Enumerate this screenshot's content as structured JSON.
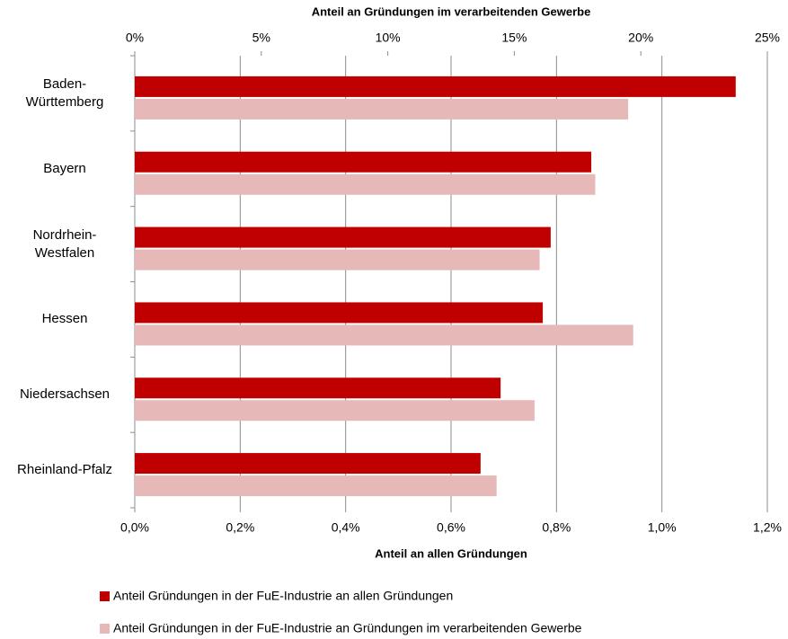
{
  "chart_data": {
    "type": "hbar",
    "x_label": "Anteil an allen Gründungen",
    "x2_label": "Anteil an Gründungen im verarbeitenden Gewerbe",
    "categories": [
      "Baden-\nWürttemberg",
      "Bayern",
      "Nordrhein-\nWestfalen",
      "Hessen",
      "Niedersachsen",
      "Rheinland-Pfalz"
    ],
    "series": [
      {
        "name": "Anteil Gründungen in der FuE-Industrie an allen Gründungen",
        "color": "#c00000",
        "axis": "x",
        "values": [
          1.14,
          0.866,
          0.789,
          0.774,
          0.694,
          0.656
        ]
      },
      {
        "name": "Anteil Gründungen in der FuE-Industrie an Gründungen im verarbeitenden Gewerbe",
        "color": "#e6b9b8",
        "axis": "x2",
        "values": [
          19.5,
          18.2,
          16.0,
          19.7,
          15.8,
          14.3
        ]
      }
    ],
    "xlim": [
      0,
      1.2
    ],
    "xticks": [
      {
        "value": 0,
        "label": "0,0%"
      },
      {
        "value": 0.2,
        "label": "0,2%"
      },
      {
        "value": 0.4,
        "label": "0,4%"
      },
      {
        "value": 0.6,
        "label": "0,6%"
      },
      {
        "value": 0.8,
        "label": "0,8%"
      },
      {
        "value": 1.0,
        "label": "1,0%"
      },
      {
        "value": 1.2,
        "label": "1,2%"
      }
    ],
    "x2lim": [
      0,
      25
    ],
    "x2ticks": [
      {
        "value": 0,
        "label": "0%"
      },
      {
        "value": 5,
        "label": "5%"
      },
      {
        "value": 10,
        "label": "10%"
      },
      {
        "value": 15,
        "label": "15%"
      },
      {
        "value": 20,
        "label": "20%"
      },
      {
        "value": 25,
        "label": "25%"
      }
    ],
    "grid": true,
    "legend": "bottom"
  }
}
